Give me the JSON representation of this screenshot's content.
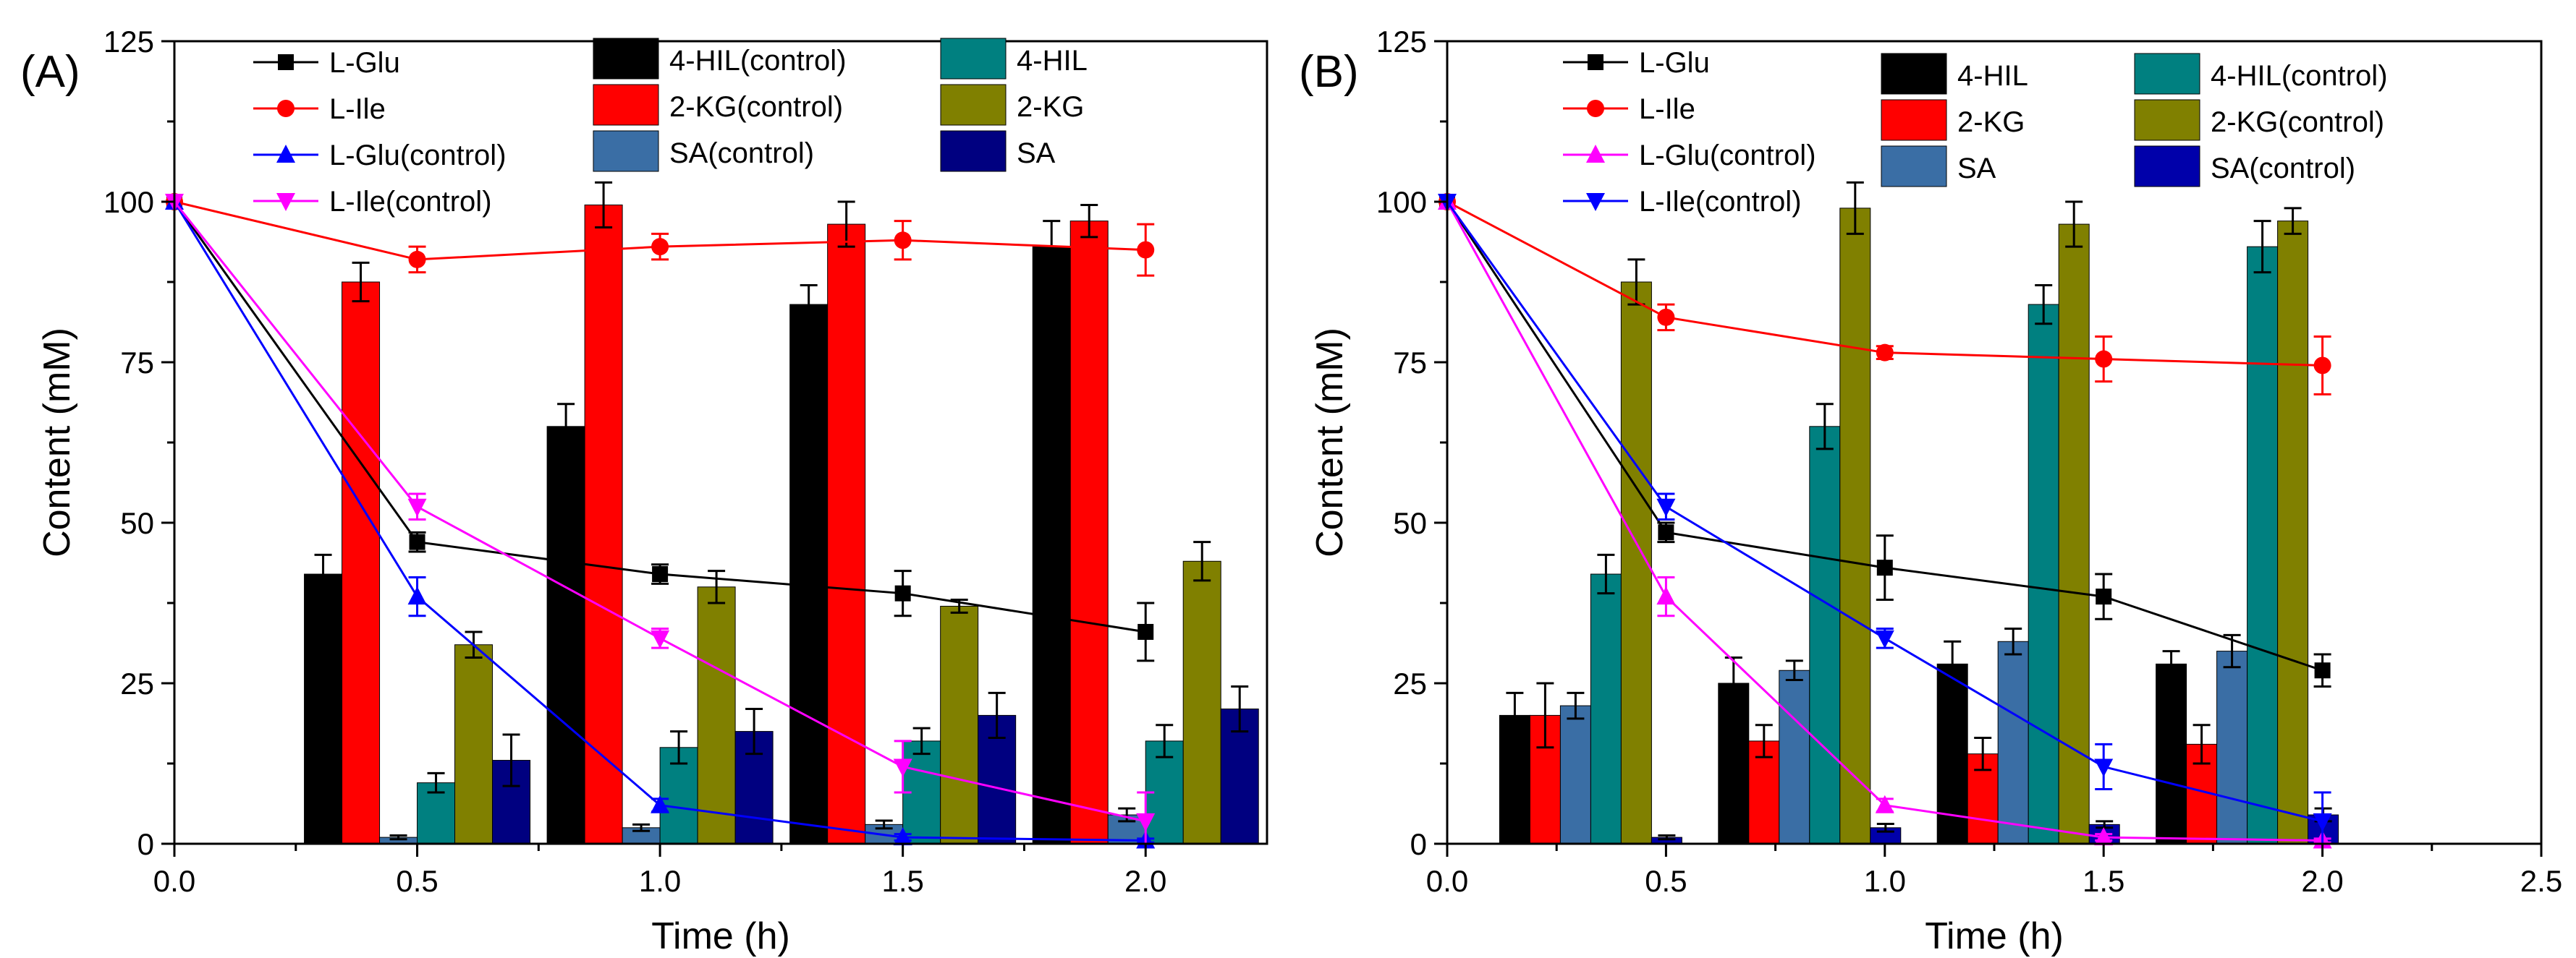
{
  "chart_data": [
    {
      "panel_label": "(A)",
      "type": "bar+line",
      "xlabel": "Time (h)",
      "ylabel": "Content (mM)",
      "xlim": [
        0,
        2.25
      ],
      "ylim": [
        0,
        125
      ],
      "xticks": [
        "0.0",
        "0.5",
        "1.0",
        "1.5",
        "2.0"
      ],
      "yticks": [
        "0",
        "25",
        "50",
        "75",
        "100",
        "125"
      ],
      "bar_groups": [
        0.5,
        1.0,
        1.5,
        2.0
      ],
      "bars": [
        {
          "name": "4-HIL(control)",
          "color": "#000000",
          "values": [
            42,
            65,
            84,
            93
          ],
          "errors": [
            3,
            3.5,
            3,
            4
          ]
        },
        {
          "name": "2-KG(control)",
          "color": "#ff0000",
          "values": [
            87.5,
            99.5,
            96.5,
            97
          ],
          "errors": [
            3,
            3.5,
            3.5,
            2.5
          ]
        },
        {
          "name": "SA(control)",
          "color": "#3a6ea5",
          "values": [
            1,
            2.5,
            3,
            4.5
          ],
          "errors": [
            0.3,
            0.5,
            0.6,
            1
          ]
        },
        {
          "name": "4-HIL",
          "color": "#008080",
          "values": [
            9.5,
            15,
            16,
            16
          ],
          "errors": [
            1.5,
            2.5,
            2,
            2.5
          ]
        },
        {
          "name": "2-KG",
          "color": "#808000",
          "values": [
            31,
            40,
            37,
            44
          ],
          "errors": [
            2,
            2.5,
            1,
            3
          ]
        },
        {
          "name": "SA",
          "color": "#000080",
          "values": [
            13,
            17.5,
            20,
            21
          ],
          "errors": [
            4,
            3.5,
            3.5,
            3.5
          ]
        }
      ],
      "lines": [
        {
          "name": "L-Glu",
          "color": "#000000",
          "marker": "square",
          "x": [
            0,
            0.5,
            1.0,
            1.5,
            2.0
          ],
          "values": [
            100,
            47,
            42,
            39,
            33
          ],
          "errors": [
            0,
            1.5,
            1.5,
            3.5,
            4.5
          ]
        },
        {
          "name": "L-Ile",
          "color": "#ff0000",
          "marker": "circle",
          "x": [
            0,
            0.5,
            1.0,
            1.5,
            2.0
          ],
          "values": [
            100,
            91,
            93,
            94,
            92.5
          ],
          "errors": [
            0,
            2,
            2,
            3,
            4
          ]
        },
        {
          "name": "L-Glu(control)",
          "color": "#0000ff",
          "marker": "triangle-up",
          "x": [
            0,
            0.5,
            1.0,
            1.5,
            2.0
          ],
          "values": [
            100,
            38.5,
            6,
            1,
            0.5
          ],
          "errors": [
            0,
            3,
            1,
            0.5,
            0.3
          ]
        },
        {
          "name": "L-Ile(control)",
          "color": "#ff00ff",
          "marker": "triangle-down",
          "x": [
            0,
            0.5,
            1.0,
            1.5,
            2.0
          ],
          "values": [
            100,
            52.5,
            32,
            12,
            3.5
          ],
          "errors": [
            0,
            2,
            1.5,
            4,
            4.5
          ]
        }
      ]
    },
    {
      "panel_label": "(B)",
      "type": "bar+line",
      "xlabel": "Time (h)",
      "ylabel": "Content (mM)",
      "xlim": [
        0,
        2.5
      ],
      "ylim": [
        0,
        125
      ],
      "xticks": [
        "0.0",
        "0.5",
        "1.0",
        "1.5",
        "2.0",
        "2.5"
      ],
      "yticks": [
        "0",
        "25",
        "50",
        "75",
        "100",
        "125"
      ],
      "bar_groups": [
        0.5,
        1.0,
        1.5,
        2.0
      ],
      "bars": [
        {
          "name": "4-HIL",
          "color": "#000000",
          "values": [
            20,
            25,
            28,
            28
          ],
          "errors": [
            3.5,
            4,
            3.5,
            2
          ]
        },
        {
          "name": "2-KG",
          "color": "#ff0000",
          "values": [
            20,
            16,
            14,
            15.5
          ],
          "errors": [
            5,
            2.5,
            2.5,
            3
          ]
        },
        {
          "name": "SA",
          "color": "#3a6ea5",
          "values": [
            21.5,
            27,
            31.5,
            30
          ],
          "errors": [
            2,
            1.5,
            2,
            2.5
          ]
        },
        {
          "name": "4-HIL(control)",
          "color": "#008080",
          "values": [
            42,
            65,
            84,
            93
          ],
          "errors": [
            3,
            3.5,
            3,
            4
          ]
        },
        {
          "name": "2-KG(control)",
          "color": "#808000",
          "values": [
            87.5,
            99,
            96.5,
            97
          ],
          "errors": [
            3.5,
            4,
            3.5,
            2
          ]
        },
        {
          "name": "SA(control)",
          "color": "#0000aa",
          "values": [
            1,
            2.5,
            3,
            4.5
          ],
          "errors": [
            0.3,
            0.6,
            0.5,
            1
          ]
        }
      ],
      "lines": [
        {
          "name": "L-Glu",
          "color": "#000000",
          "marker": "square",
          "x": [
            0,
            0.5,
            1.0,
            1.5,
            2.0
          ],
          "values": [
            100,
            48.5,
            43,
            38.5,
            27
          ],
          "errors": [
            0,
            1.5,
            5,
            3.5,
            2.5
          ]
        },
        {
          "name": "L-Ile",
          "color": "#ff0000",
          "marker": "circle",
          "x": [
            0,
            0.5,
            1.0,
            1.5,
            2.0
          ],
          "values": [
            100,
            82,
            76.5,
            75.5,
            74.5
          ],
          "errors": [
            0,
            2,
            1,
            3.5,
            4.5
          ]
        },
        {
          "name": "L-Glu(control)",
          "color": "#ff00ff",
          "marker": "triangle-up",
          "x": [
            0,
            0.5,
            1.0,
            1.5,
            2.0
          ],
          "values": [
            100,
            38.5,
            6,
            1,
            0.5
          ],
          "errors": [
            0,
            3,
            1,
            0.5,
            0.3
          ]
        },
        {
          "name": "L-Ile(control)",
          "color": "#0000ff",
          "marker": "triangle-down",
          "x": [
            0,
            0.5,
            1.0,
            1.5,
            2.0
          ],
          "values": [
            100,
            52.5,
            32,
            12,
            3.5
          ],
          "errors": [
            0,
            2,
            1.5,
            3.5,
            4.5
          ]
        }
      ]
    }
  ]
}
